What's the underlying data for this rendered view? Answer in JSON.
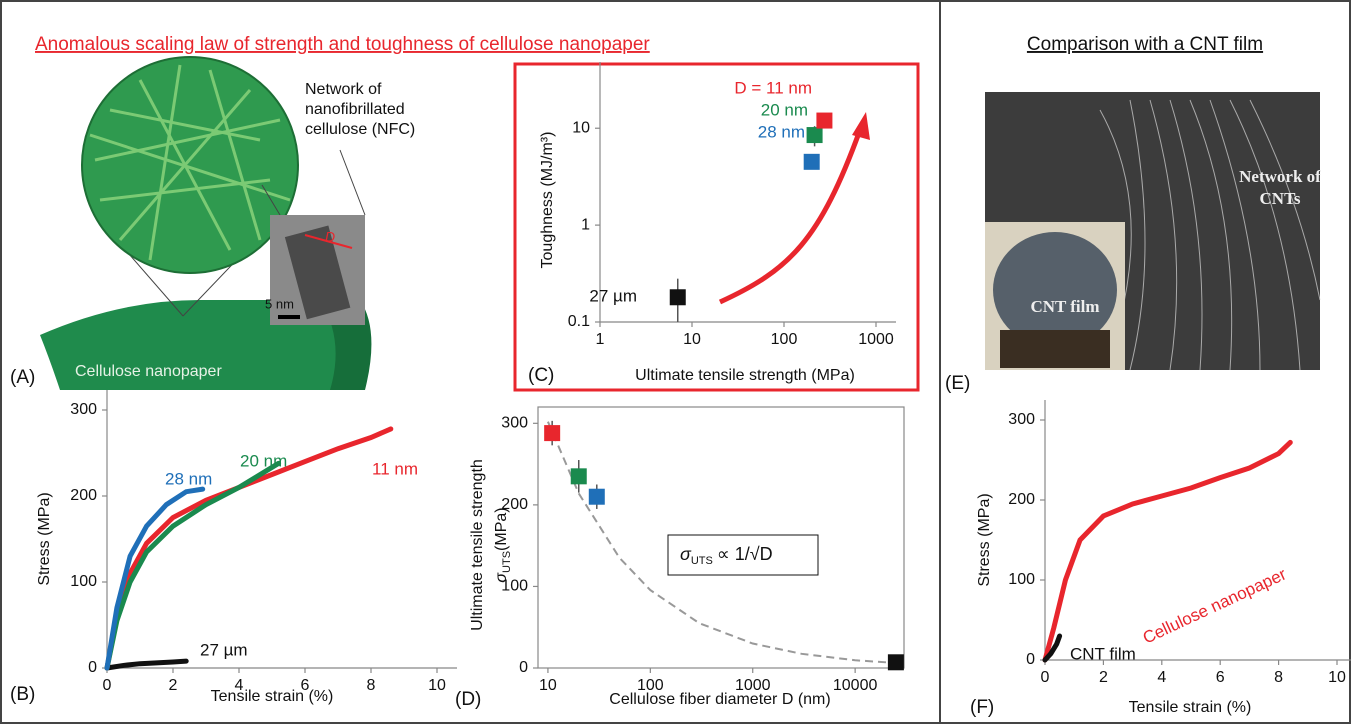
{
  "title": "Anomalous scaling law of strength and toughness of cellulose nanopaper",
  "right_title": "Comparison with a CNT film",
  "panel_a": {
    "label": "(A)",
    "callout": [
      "Network of",
      "nanofibrillated",
      "cellulose (NFC)"
    ],
    "scale_bar": "5 nm",
    "diameter": "D",
    "sheet": "Cellulose nanopaper"
  },
  "panel_e": {
    "label": "(E)",
    "network": [
      "Network of",
      "CNTs"
    ],
    "film": "CNT film"
  },
  "chart_data": [
    {
      "type": "line",
      "panel": "(B)",
      "xlabel": "Tensile strain (%)",
      "ylabel": "Stress (MPa)",
      "xlim": [
        0,
        10
      ],
      "ylim": [
        0,
        300
      ],
      "xticks": [
        0,
        2,
        4,
        6,
        8,
        10
      ],
      "yticks": [
        0,
        100,
        200,
        300
      ],
      "series": [
        {
          "name": "27 µm",
          "color": "#111111",
          "x": [
            0,
            0.5,
            1,
            1.5,
            2,
            2.4
          ],
          "values": [
            0,
            3,
            5,
            6,
            7,
            8
          ]
        },
        {
          "name": "11 nm",
          "color": "#e8262d",
          "x": [
            0,
            0.3,
            0.7,
            1.2,
            2,
            3,
            4,
            5,
            6,
            7,
            8,
            8.6
          ],
          "values": [
            0,
            60,
            110,
            145,
            175,
            195,
            210,
            225,
            240,
            255,
            268,
            278
          ]
        },
        {
          "name": "20 nm",
          "color": "#1a8a4e",
          "x": [
            0,
            0.3,
            0.7,
            1.2,
            2,
            3,
            4,
            5.2
          ],
          "values": [
            0,
            55,
            100,
            135,
            165,
            190,
            210,
            238
          ]
        },
        {
          "name": "28 nm",
          "color": "#1f6fb8",
          "x": [
            0,
            0.3,
            0.7,
            1.2,
            1.8,
            2.4,
            2.9
          ],
          "values": [
            0,
            70,
            130,
            165,
            190,
            205,
            208
          ]
        }
      ]
    },
    {
      "type": "scatter",
      "panel": "(C)",
      "xlabel": "Ultimate tensile strength (MPa)",
      "ylabel": "Toughness (MJ/m³)",
      "log_x": true,
      "log_y": true,
      "xlim": [
        1,
        1000
      ],
      "ylim": [
        0.1,
        30
      ],
      "xticks": [
        1,
        10,
        100,
        1000
      ],
      "yticks": [
        0.1,
        1,
        10
      ],
      "series": [
        {
          "name": "27 µm",
          "color": "#111111",
          "x": [
            7
          ],
          "values": [
            0.18
          ],
          "errors": [
            0.1
          ]
        },
        {
          "name": "28 nm",
          "color": "#1f6fb8",
          "x": [
            200
          ],
          "values": [
            4.5
          ],
          "errors": [
            null
          ]
        },
        {
          "name": "20 nm",
          "color": "#1a8a4e",
          "x": [
            215
          ],
          "values": [
            8.5
          ],
          "errors": [
            2
          ]
        },
        {
          "name": "D = 11 nm",
          "color": "#e8262d",
          "x": [
            275
          ],
          "values": [
            12
          ],
          "errors": [
            null
          ]
        }
      ]
    },
    {
      "type": "scatter",
      "panel": "(D)",
      "xlabel": "Cellulose fiber diameter D (nm)",
      "ylabel": "Ultimate tensile strength",
      "ylabel_symbol": "σ",
      "ylabel_subscript": "UTS",
      "ylabel_unit": "(MPa)",
      "log_x": true,
      "xlim": [
        8,
        30000
      ],
      "ylim": [
        0,
        320
      ],
      "xticks": [
        10,
        100,
        1000,
        10000
      ],
      "yticks": [
        0,
        100,
        200,
        300
      ],
      "series": [
        {
          "color": "#e8262d",
          "x": [
            11
          ],
          "values": [
            288
          ],
          "errors": [
            15
          ]
        },
        {
          "color": "#1a8a4e",
          "x": [
            20
          ],
          "values": [
            235
          ],
          "errors": [
            20
          ]
        },
        {
          "color": "#1f6fb8",
          "x": [
            30
          ],
          "values": [
            210
          ],
          "errors": [
            15
          ]
        },
        {
          "color": "#111111",
          "x": [
            25000
          ],
          "values": [
            7
          ],
          "errors": [
            null
          ]
        }
      ],
      "fit": {
        "color": "#999999",
        "x": [
          10,
          20,
          50,
          100,
          300,
          1000,
          3000,
          10000,
          30000
        ],
        "values": [
          302,
          214,
          135,
          95.5,
          55,
          30,
          17.4,
          9.5,
          5.5
        ]
      },
      "annotation": {
        "symbol": "σ",
        "subscript": "UTS",
        "rest": "∝ 1/√D"
      }
    },
    {
      "type": "line",
      "panel": "(F)",
      "xlabel": "Tensile strain (%)",
      "ylabel": "Stress (MPa)",
      "xlim": [
        0,
        10
      ],
      "ylim": [
        0,
        300
      ],
      "xticks": [
        0,
        2,
        4,
        6,
        8,
        10
      ],
      "yticks": [
        0,
        100,
        200,
        300
      ],
      "series": [
        {
          "name": "Cellulose nanopaper",
          "color": "#e8262d",
          "x": [
            0,
            0.3,
            0.7,
            1.2,
            2,
            3,
            4,
            5,
            6,
            7,
            8,
            8.4
          ],
          "values": [
            0,
            40,
            100,
            150,
            180,
            195,
            205,
            215,
            228,
            240,
            258,
            272
          ]
        },
        {
          "name": "CNT film",
          "color": "#111111",
          "x": [
            0,
            0.2,
            0.4,
            0.5
          ],
          "values": [
            0,
            8,
            20,
            30
          ]
        }
      ]
    }
  ]
}
